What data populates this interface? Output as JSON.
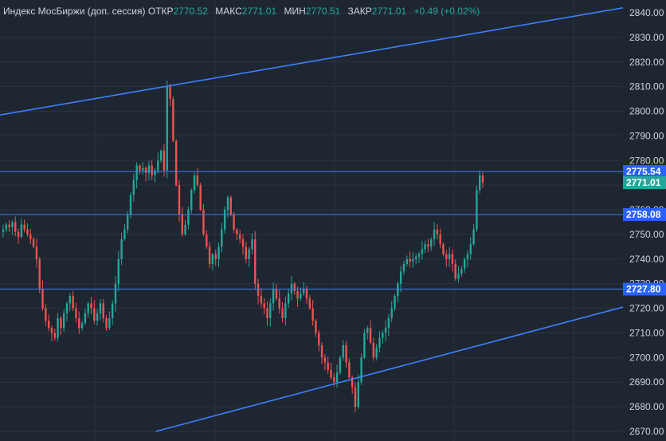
{
  "legend": {
    "title": "Индекс МосБиржи (доп. сессия)",
    "open_label": "ОТКР",
    "open_value": "2770.52",
    "high_label": "МАКС",
    "high_value": "2771.01",
    "low_label": "МИН",
    "low_value": "2770.51",
    "close_label": "ЗАКР",
    "close_value": "2771.01",
    "change": "+0.49 (+0.02%)"
  },
  "colors": {
    "background": "#1e2631",
    "grid": "#2a3340",
    "up": "#26a69a",
    "down": "#ef5350",
    "level_line": "#3d7fff",
    "label_bg": "#2962ff",
    "last_price_bg": "#26a69a",
    "axis_text": "#d1d4dc"
  },
  "chart_data": {
    "type": "candlestick",
    "y_axis": {
      "min": 2670,
      "max": 2840,
      "ticks": [
        "2840.00",
        "2830.00",
        "2820.00",
        "2810.00",
        "2800.00",
        "2790.00",
        "2780.00",
        "2770.00",
        "2760.00",
        "2750.00",
        "2740.00",
        "2730.00",
        "2720.00",
        "2710.00",
        "2700.00",
        "2690.00",
        "2680.00",
        "2670.00"
      ]
    },
    "grid": true,
    "last_price": "2771.01",
    "horizontal_levels": [
      {
        "value": 2775.54,
        "label": "2775.54"
      },
      {
        "value": 2758.08,
        "label": "2758.08"
      },
      {
        "value": 2727.8,
        "label": "2727.80"
      }
    ],
    "trend_lines": [
      {
        "points": [
          [
            0,
            2798.5
          ],
          [
            1,
            2842
          ]
        ],
        "x_units": "fraction_of_series"
      },
      {
        "points": [
          [
            0.25,
            2670
          ],
          [
            1,
            2720.5
          ]
        ],
        "x_units": "fraction_of_series"
      }
    ],
    "series": [
      {
        "closes": [
          2752,
          2754,
          2753,
          2755,
          2751,
          2749,
          2754,
          2752,
          2750,
          2748,
          2745,
          2740,
          2728,
          2720,
          2715,
          2712,
          2710,
          2708,
          2716,
          2712,
          2718,
          2722,
          2725,
          2720,
          2716,
          2712,
          2714,
          2718,
          2722,
          2720,
          2715,
          2718,
          2722,
          2716,
          2712,
          2716,
          2722,
          2730,
          2740,
          2748,
          2752,
          2758,
          2766,
          2772,
          2778,
          2776,
          2777,
          2775,
          2778,
          2774,
          2776,
          2780,
          2784,
          2776,
          2810,
          2805,
          2788,
          2770,
          2758,
          2750,
          2754,
          2760,
          2768,
          2774,
          2770,
          2760,
          2750,
          2745,
          2738,
          2742,
          2740,
          2745,
          2752,
          2760,
          2765,
          2758,
          2752,
          2750,
          2748,
          2745,
          2740,
          2744,
          2748,
          2730,
          2725,
          2722,
          2720,
          2716,
          2722,
          2728,
          2724,
          2720,
          2716,
          2722,
          2726,
          2730,
          2727,
          2724,
          2726,
          2728,
          2724,
          2720,
          2715,
          2710,
          2705,
          2700,
          2698,
          2695,
          2692,
          2690,
          2694,
          2700,
          2705,
          2698,
          2692,
          2688,
          2680,
          2690,
          2700,
          2710,
          2712,
          2706,
          2700,
          2704,
          2708,
          2710,
          2712,
          2716,
          2720,
          2725,
          2730,
          2735,
          2738,
          2740,
          2739,
          2740,
          2741,
          2742,
          2744,
          2746,
          2745,
          2748,
          2752,
          2750,
          2746,
          2742,
          2740,
          2742,
          2738,
          2732,
          2734,
          2736,
          2740,
          2742,
          2746,
          2752,
          2768,
          2774,
          2771
        ]
      }
    ]
  }
}
